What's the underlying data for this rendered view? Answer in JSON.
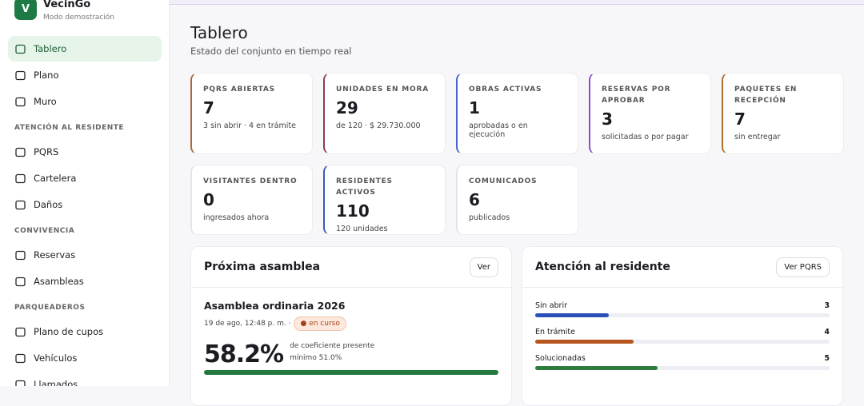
{
  "sidebar": {
    "brand": {
      "logo": "V",
      "name": "VecinGo",
      "subtitle": "Modo demostración"
    },
    "main": [
      "Tablero",
      "Plano",
      "Muro"
    ],
    "groups": [
      {
        "title": "ATENCIÓN AL RESIDENTE",
        "items": [
          "PQRS",
          "Cartelera",
          "Daños"
        ]
      },
      {
        "title": "CONVIVENCIA",
        "items": [
          "Reservas",
          "Asambleas"
        ]
      },
      {
        "title": "PARQUEADEROS",
        "items": [
          "Plano de cupos",
          "Vehículos",
          "Llamados"
        ]
      }
    ]
  },
  "header": {
    "title": "Tablero",
    "subtitle": "Estado del conjunto en tiempo real"
  },
  "stats": [
    {
      "label": "PQRS ABIERTAS",
      "value": 7,
      "note": "3 sin abrir · 4 en trámite",
      "color": "#a8683c"
    },
    {
      "label": "UNIDADES EN MORA",
      "value": 29,
      "note": "de 120 · $ 29.730.000",
      "color": "#8e3a58"
    },
    {
      "label": "OBRAS ACTIVAS",
      "value": 1,
      "note": "aprobadas o en ejecución",
      "color": "#4a5fd0"
    },
    {
      "label": "RESERVAS POR APROBAR",
      "value": 3,
      "note": "solicitadas o por pagar",
      "color": "#8a4fc8"
    },
    {
      "label": "PAQUETES EN RECEPCIÓN",
      "value": 7,
      "note": "sin entregar",
      "color": "#b0702a"
    },
    {
      "label": "VISITANTES DENTRO",
      "value": 0,
      "note": "ingresados ahora",
      "color": "#e4e4ea"
    },
    {
      "label": "RESIDENTES ACTIVOS",
      "value": 110,
      "note": "120 unidades",
      "color": "#3a5ba8"
    },
    {
      "label": "COMUNICADOS",
      "value": 6,
      "note": "publicados",
      "color": "#e4e4ea"
    }
  ],
  "assembly": {
    "title": "Próxima asamblea",
    "button": "Ver",
    "name": "Asamblea ordinaria 2026",
    "date": "19 de ago, 12:48 p. m. ·",
    "badge": "en curso",
    "percent": "58.2%",
    "caption": "de coeficiente presente",
    "minimum": "mínimo 51.0%"
  },
  "attention": {
    "title": "Atención al residente",
    "button": "Ver PQRS",
    "rows": [
      {
        "label": "Sin abrir",
        "value": 3,
        "color": "#2a4fb8"
      },
      {
        "label": "En trámite",
        "value": 4,
        "color": "#b5561e"
      },
      {
        "label": "Solucionadas",
        "value": 5,
        "color": "#2e7d3e"
      }
    ]
  }
}
